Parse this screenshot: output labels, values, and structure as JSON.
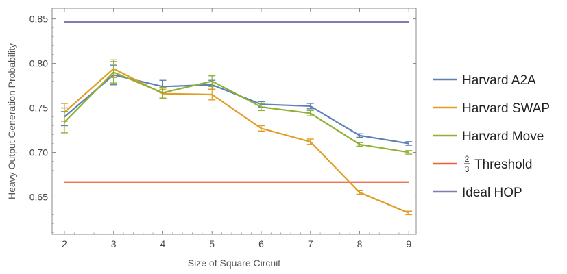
{
  "chart_data": {
    "type": "line",
    "xlabel": "Size of Square Circuit",
    "ylabel": "Heavy Output Generation Probability",
    "xlim": [
      1.75,
      9.15
    ],
    "ylim": [
      0.608,
      0.862
    ],
    "x_ticks": [
      2,
      3,
      4,
      5,
      6,
      7,
      8,
      9
    ],
    "y_ticks": [
      0.65,
      0.7,
      0.75,
      0.8,
      0.85
    ],
    "y_tick_labels": [
      "0.65",
      "0.70",
      "0.75",
      "0.80",
      "0.85"
    ],
    "grid": false,
    "legend_position": "right",
    "series": [
      {
        "name": "Harvard A2A",
        "color": "#5e81b5",
        "x": [
          2,
          3,
          4,
          5,
          6,
          7,
          8,
          9
        ],
        "y": [
          0.74,
          0.787,
          0.774,
          0.776,
          0.754,
          0.752,
          0.719,
          0.71
        ],
        "err": [
          0.01,
          0.011,
          0.007,
          0.005,
          0.003,
          0.003,
          0.002,
          0.002
        ]
      },
      {
        "name": "Harvard SWAP",
        "color": "#e19c24",
        "x": [
          2,
          3,
          4,
          5,
          6,
          7,
          8,
          9
        ],
        "y": [
          0.745,
          0.794,
          0.766,
          0.765,
          0.727,
          0.712,
          0.655,
          0.632
        ],
        "err": [
          0.01,
          0.01,
          0.005,
          0.006,
          0.003,
          0.003,
          0.002,
          0.002
        ]
      },
      {
        "name": "Harvard Move",
        "color": "#8fb032",
        "x": [
          2,
          3,
          4,
          5,
          6,
          7,
          8,
          9
        ],
        "y": [
          0.734,
          0.79,
          0.767,
          0.78,
          0.751,
          0.744,
          0.709,
          0.7
        ],
        "err": [
          0.012,
          0.012,
          0.006,
          0.006,
          0.004,
          0.003,
          0.002,
          0.002
        ]
      }
    ],
    "reference_lines": [
      {
        "name": "Threshold",
        "value": 0.6667,
        "color": "#eb6235",
        "label_fraction_num": "2",
        "label_fraction_den": "3"
      },
      {
        "name": "Ideal HOP",
        "value": 0.8466,
        "color": "#8778b3"
      }
    ],
    "axis_color": "#888888"
  }
}
